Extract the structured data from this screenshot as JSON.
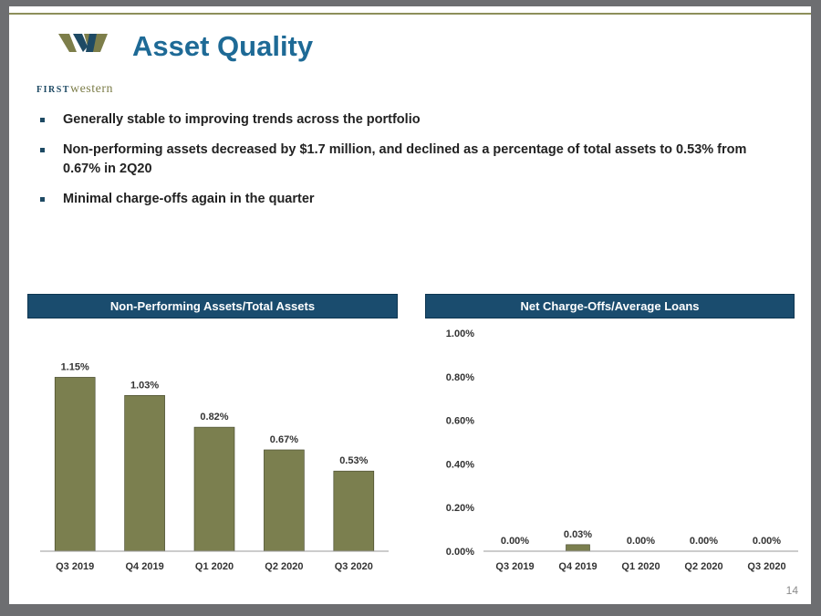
{
  "slide": {
    "title": "Asset Quality",
    "logo": {
      "text_first": "FIRST",
      "text_western": "western"
    },
    "bullets": [
      "Generally stable to improving trends across the portfolio",
      "Non-performing assets decreased by $1.7 million, and declined as a percentage of total assets to 0.53% from 0.67% in 2Q20",
      "Minimal charge-offs again in the quarter"
    ],
    "page_number": "14",
    "colors": {
      "accent": "#1e6a96",
      "header_bg": "#1a4c6e",
      "bar": "#7b7f4f",
      "frame": "#6d6e71"
    }
  },
  "chart_data": [
    {
      "type": "bar",
      "title": "Non-Performing Assets/Total Assets",
      "categories": [
        "Q3 2019",
        "Q4 2019",
        "Q1 2020",
        "Q2 2020",
        "Q3 2020"
      ],
      "values": [
        1.15,
        1.03,
        0.82,
        0.67,
        0.53
      ],
      "data_labels": [
        "1.15%",
        "1.03%",
        "0.82%",
        "0.67%",
        "0.53%"
      ],
      "ylim": [
        0,
        1.4
      ],
      "y_axis_visible": false,
      "grid": false
    },
    {
      "type": "bar",
      "title": "Net Charge-Offs/Average Loans",
      "categories": [
        "Q3 2019",
        "Q4 2019",
        "Q1 2020",
        "Q2 2020",
        "Q3 2020"
      ],
      "values": [
        0.0,
        0.03,
        0.0,
        0.0,
        0.0
      ],
      "data_labels": [
        "0.00%",
        "0.03%",
        "0.00%",
        "0.00%",
        "0.00%"
      ],
      "y_ticks": [
        "0.00%",
        "0.20%",
        "0.40%",
        "0.60%",
        "0.80%",
        "1.00%"
      ],
      "ylim": [
        0,
        1.0
      ],
      "y_axis_visible": true,
      "grid": false
    }
  ]
}
